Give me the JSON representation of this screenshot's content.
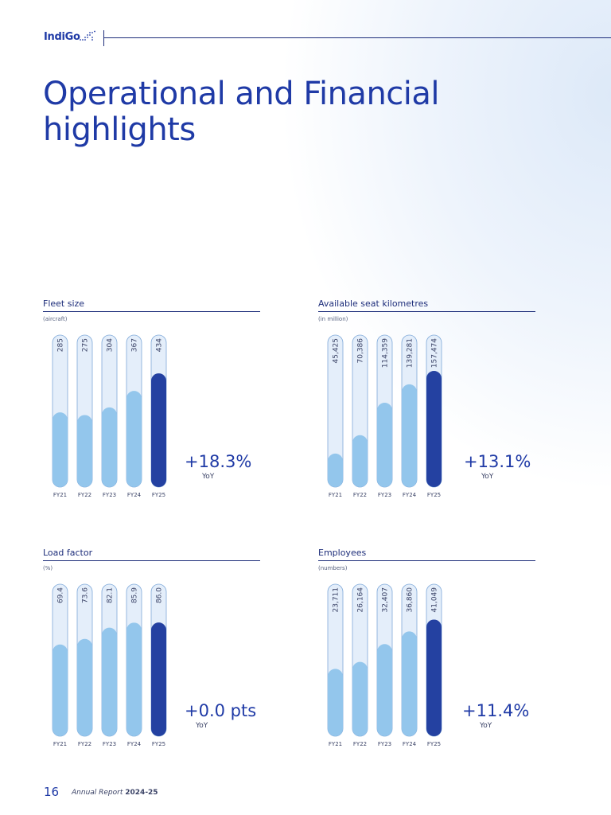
{
  "header": {
    "logo_text": "IndiGo"
  },
  "page": {
    "title": "Operational and Financial highlights",
    "footer_page": "16",
    "footer_report": "Annual Report",
    "footer_year": "2024-25"
  },
  "colors": {
    "accent": "#1f3aa6",
    "bar_light": "#93c6ec",
    "bar_current": "#2441a1",
    "bar_track": "#e4eefa"
  },
  "chart_data": [
    {
      "type": "bar",
      "title": "Fleet size",
      "unit": "(aircraft)",
      "categories": [
        "FY21",
        "FY22",
        "FY23",
        "FY24",
        "FY25"
      ],
      "values": [
        285,
        275,
        304,
        367,
        434
      ],
      "value_labels": [
        "285",
        "275",
        "304",
        "367",
        "434"
      ],
      "ylim": [
        0,
        580
      ],
      "growth": "+18.3%",
      "growth_label": "YoY"
    },
    {
      "type": "bar",
      "title": "Available seat kilometres",
      "unit": "(in million)",
      "categories": [
        "FY21",
        "FY22",
        "FY23",
        "FY24",
        "FY25"
      ],
      "values": [
        45425,
        70386,
        114359,
        139281,
        157474
      ],
      "value_labels": [
        "45,425",
        "70,386",
        "114,359",
        "139,281",
        "157,474"
      ],
      "ylim": [
        0,
        206000
      ],
      "growth": "+13.1%",
      "growth_label": "YoY"
    },
    {
      "type": "bar",
      "title": "Load factor",
      "unit": "(%)",
      "categories": [
        "FY21",
        "FY22",
        "FY23",
        "FY24",
        "FY25"
      ],
      "values": [
        69.4,
        73.6,
        82.1,
        85.9,
        86.0
      ],
      "value_labels": [
        "69.4",
        "73.6",
        "82.1",
        "85.9",
        "86.0"
      ],
      "ylim": [
        0,
        115
      ],
      "growth": "+0.0 pts",
      "growth_label": "YoY"
    },
    {
      "type": "bar",
      "title": "Employees",
      "unit": "(numbers)",
      "categories": [
        "FY21",
        "FY22",
        "FY23",
        "FY24",
        "FY25"
      ],
      "values": [
        23711,
        26164,
        32407,
        36860,
        41049
      ],
      "value_labels": [
        "23,711",
        "26,164",
        "32,407",
        "36,860",
        "41,049"
      ],
      "ylim": [
        0,
        53500
      ],
      "growth": "+11.4%",
      "growth_label": "YoY"
    }
  ]
}
